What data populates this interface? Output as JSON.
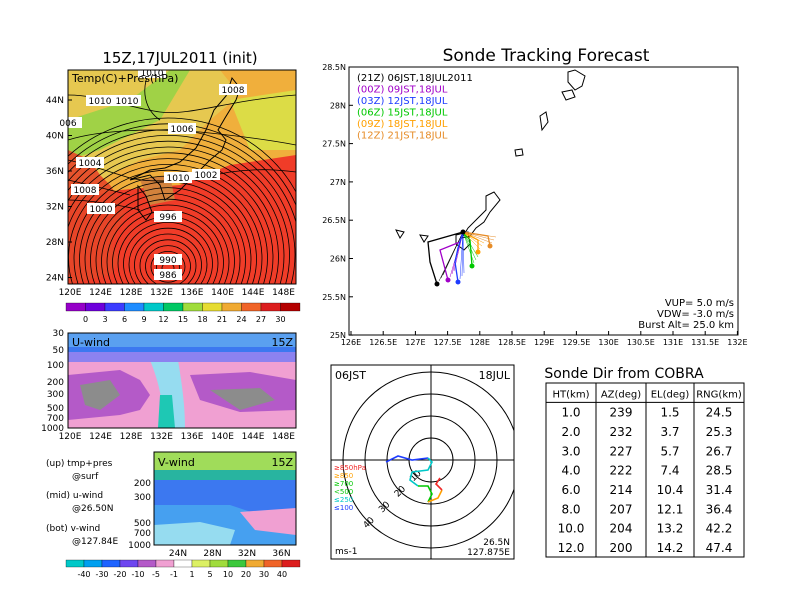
{
  "colors": {
    "purple": "#a000c8",
    "blue": "#1e3cff",
    "green": "#00c800",
    "orange": "#ffa000",
    "orange2": "#e68c28",
    "black": "#000000",
    "red": "#f02828",
    "cyan": "#00c8c8"
  },
  "left_top": {
    "title": "15Z,17JUL2011 (init)",
    "label": "Temp(C)+Pres(hPa)",
    "lat_ticks": [
      "44N",
      "40N",
      "36N",
      "32N",
      "28N",
      "24N"
    ],
    "lon_ticks": [
      "120E",
      "124E",
      "128E",
      "132E",
      "136E",
      "140E",
      "144E",
      "148E"
    ],
    "colorbar": [
      "0",
      "3",
      "6",
      "9",
      "12",
      "15",
      "18",
      "21",
      "24",
      "27",
      "30"
    ],
    "isobars": [
      "1010",
      "1010",
      "1008",
      "1010",
      "1006",
      "1004",
      "1008",
      "1010",
      "1002",
      "1000",
      "996",
      "990",
      "986",
      "006"
    ]
  },
  "left_mid": {
    "label": "U-wind",
    "time": "15Z",
    "p_ticks": [
      "30",
      "50",
      "100",
      "200",
      "300",
      "500",
      "700",
      "1000"
    ],
    "lon_ticks": [
      "120E",
      "124E",
      "128E",
      "132E",
      "136E",
      "140E",
      "144E",
      "148E"
    ]
  },
  "left_bot": {
    "label": "V-wind",
    "time": "15Z",
    "p_ticks": [
      "200",
      "300",
      "500",
      "700",
      "1000"
    ],
    "lat_ticks": [
      "24N",
      "28N",
      "32N",
      "36N"
    ],
    "colorbar": [
      "-40",
      "-30",
      "-20",
      "-10",
      "-5",
      "-1",
      "1",
      "5",
      "10",
      "20",
      "30",
      "40"
    ]
  },
  "legend": {
    "lines": [
      "(up) tmp+pres",
      "@surf",
      "(mid) u-wind",
      "@26.50N",
      "(bot) v-wind",
      "@127.84E"
    ]
  },
  "track": {
    "title": "Sonde Tracking Forecast",
    "times": [
      {
        "text": "(21Z)  06JST,18JUL2011",
        "color": "#000000"
      },
      {
        "text": "(00Z)  09JST,18JUL",
        "color": "#a000c8"
      },
      {
        "text": "(03Z)  12JST,18JUL",
        "color": "#1e3cff"
      },
      {
        "text": "(06Z)  15JST,18JUL",
        "color": "#00c800"
      },
      {
        "text": "(09Z)  18JST,18JUL",
        "color": "#ffa000"
      },
      {
        "text": "(12Z)  21JST,18JUL",
        "color": "#e68c28"
      }
    ],
    "lat_ticks": [
      "28.5N",
      "28N",
      "27.5N",
      "27N",
      "26.5N",
      "26N",
      "25.5N",
      "25N"
    ],
    "lon_ticks": [
      "126E",
      "126.5E",
      "127E",
      "127.5E",
      "128E",
      "128.5E",
      "129E",
      "129.5E",
      "130E",
      "130.5E",
      "131E",
      "131.5E",
      "132E"
    ],
    "info": [
      "VUP=  5.0  m/s",
      "VDW= -3.0  m/s",
      "Burst Alt=  25.0  km"
    ]
  },
  "hodo": {
    "time": "06JST",
    "date": "18JUL",
    "ring_labels": [
      "10",
      "20",
      "30",
      "40"
    ],
    "level_legend": [
      "≥850hPa",
      "≥850",
      "≥700",
      "<500",
      "≤250",
      "≤100"
    ],
    "unit": "ms-1",
    "loc1": "26.5N",
    "loc2": "127.875E"
  },
  "table": {
    "title": "Sonde Dir from COBRA",
    "headers": [
      "HT(km)",
      "AZ(deg)",
      "EL(deg)",
      "RNG(km)"
    ],
    "rows": [
      [
        "1.0",
        "239",
        "1.5",
        "24.5"
      ],
      [
        "2.0",
        "232",
        "3.7",
        "25.3"
      ],
      [
        "3.0",
        "227",
        "5.7",
        "26.7"
      ],
      [
        "4.0",
        "222",
        "7.4",
        "28.5"
      ],
      [
        "6.0",
        "214",
        "10.4",
        "31.4"
      ],
      [
        "8.0",
        "207",
        "12.1",
        "36.4"
      ],
      [
        "10.0",
        "204",
        "13.2",
        "42.2"
      ],
      [
        "12.0",
        "200",
        "14.2",
        "47.4"
      ]
    ]
  }
}
